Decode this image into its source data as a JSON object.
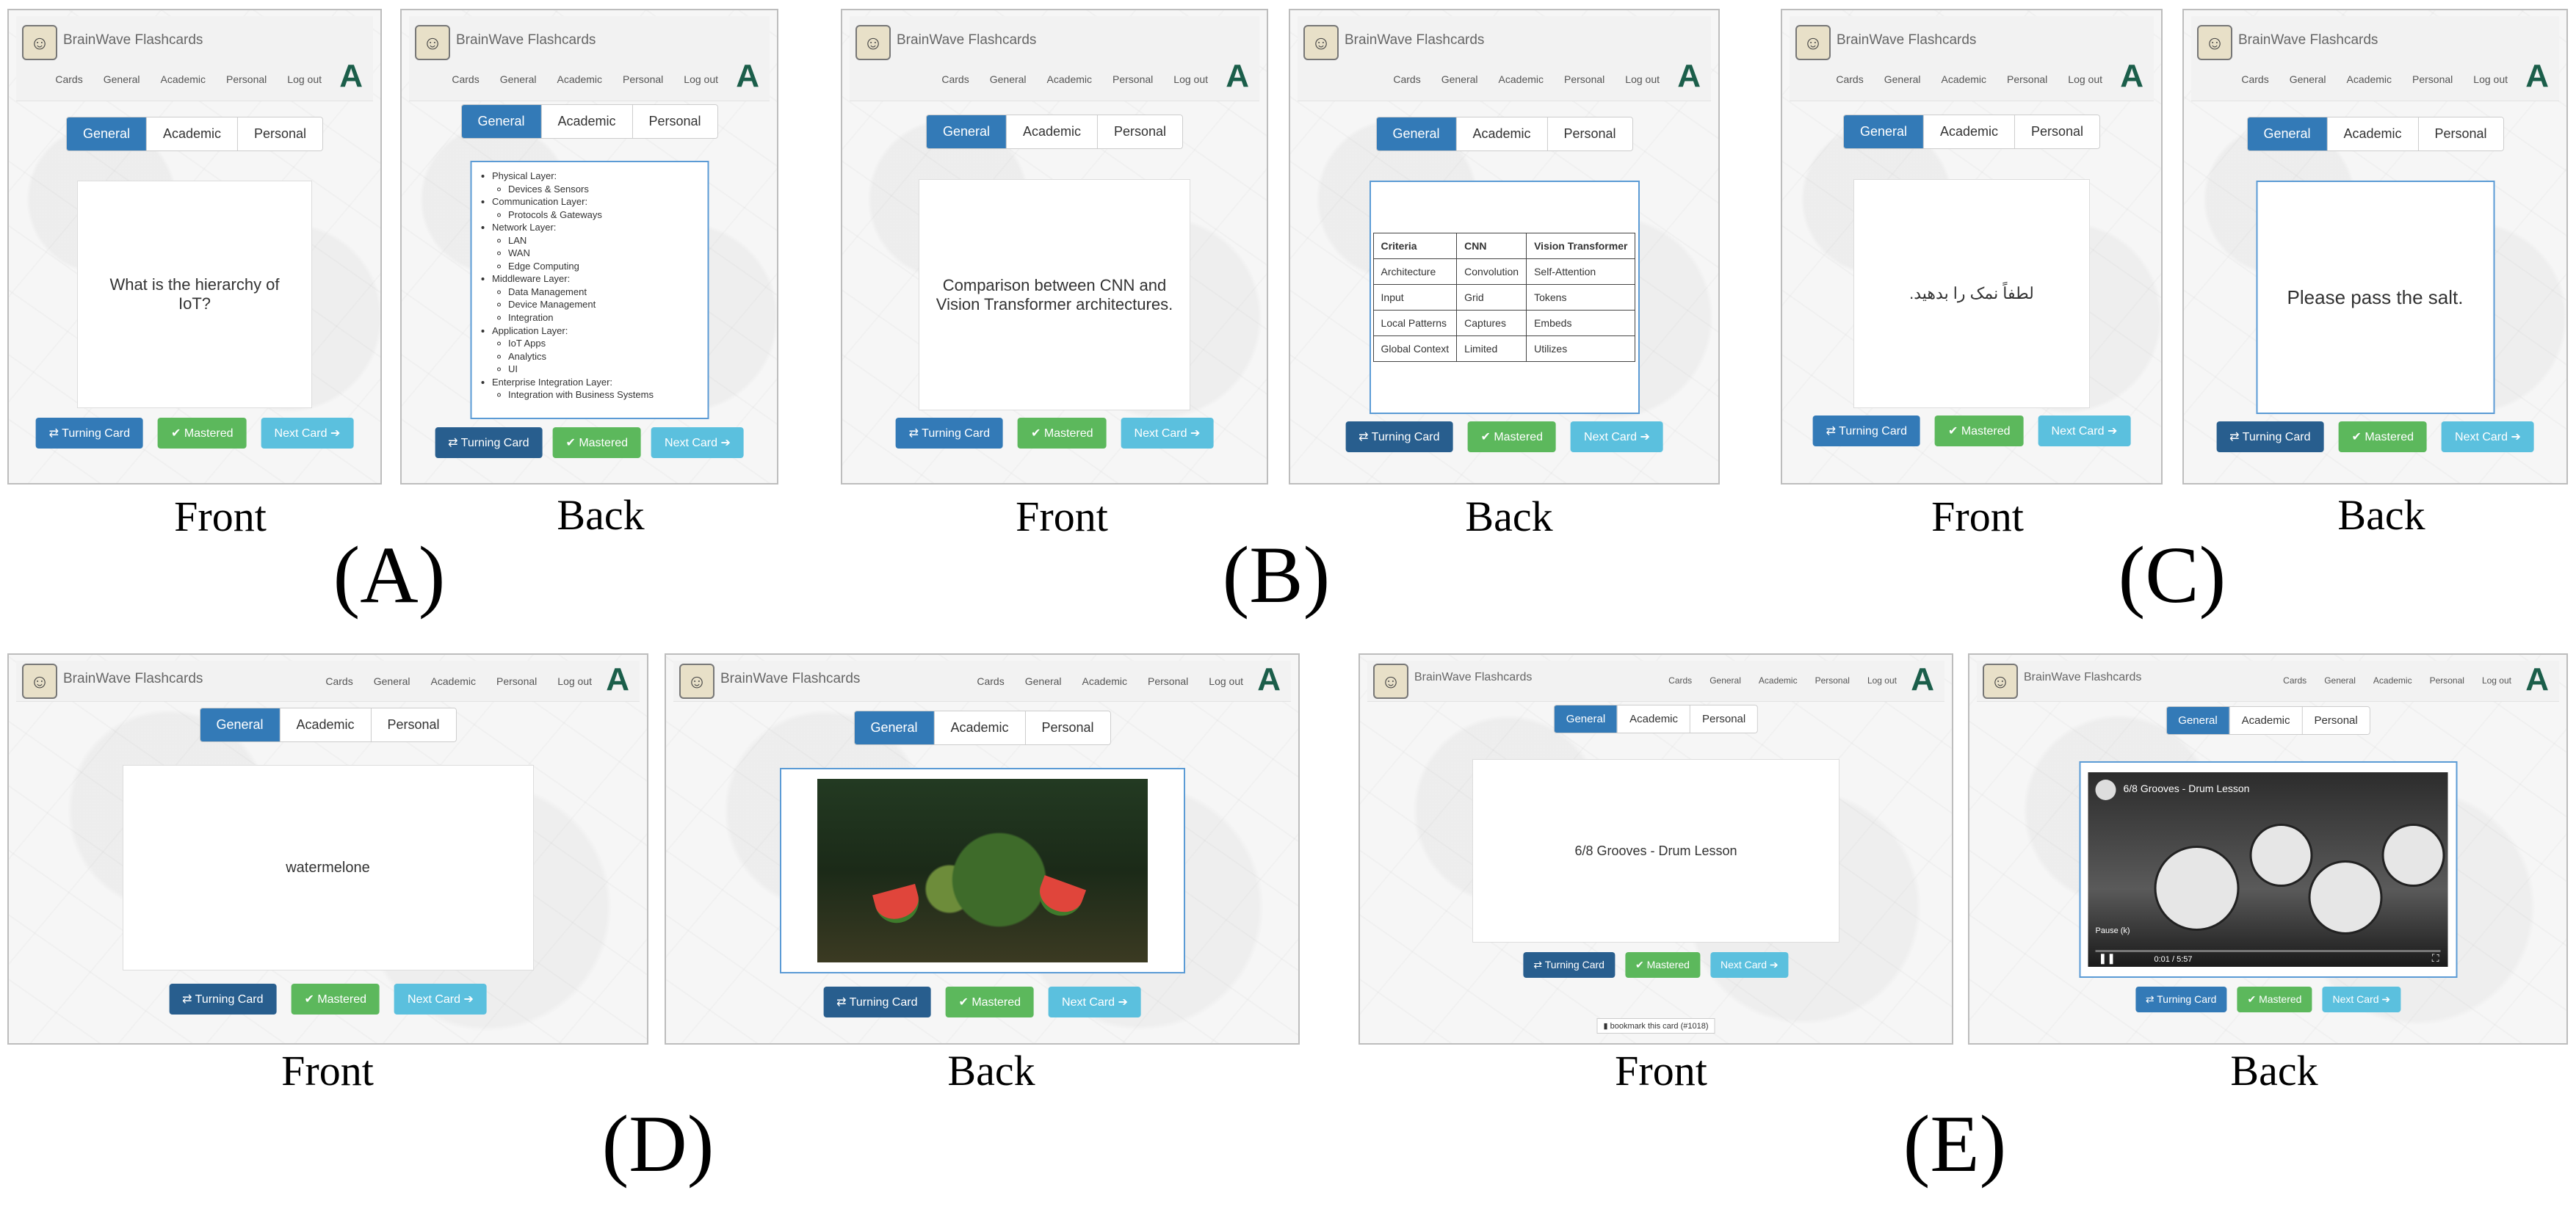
{
  "app": {
    "brand": "BrainWave Flashcards",
    "nav": [
      "Cards",
      "General",
      "Academic",
      "Personal",
      "Log out"
    ],
    "logo_letter": "A"
  },
  "tabs": [
    "General",
    "Academic",
    "Personal"
  ],
  "buttons": {
    "turn": "⇄ Turning Card",
    "mastered": "✔ Mastered",
    "next": "Next Card ➔"
  },
  "captions": {
    "front": "Front",
    "back": "Back"
  },
  "groups": [
    "(A)",
    "(B)",
    "(C)",
    "(D)",
    "(E)"
  ],
  "panels": {
    "a_front": "What is the hierarchy of IoT?",
    "a_back": [
      {
        "layer": "Physical Layer:",
        "items": [
          "Devices & Sensors"
        ]
      },
      {
        "layer": "Communication Layer:",
        "items": [
          "Protocols & Gateways"
        ]
      },
      {
        "layer": "Network Layer:",
        "items": [
          "LAN",
          "WAN",
          "Edge Computing"
        ]
      },
      {
        "layer": "Middleware Layer:",
        "items": [
          "Data Management",
          "Device Management",
          "Integration"
        ]
      },
      {
        "layer": "Application Layer:",
        "items": [
          "IoT Apps",
          "Analytics",
          "UI"
        ]
      },
      {
        "layer": "Enterprise Integration Layer:",
        "items": [
          "Integration with Business Systems"
        ]
      }
    ],
    "b_front": "Comparison between CNN and Vision Transformer architectures.",
    "b_back": {
      "header": [
        "Criteria",
        "CNN",
        "Vision Transformer"
      ],
      "rows": [
        [
          "Architecture",
          "Convolution",
          "Self-Attention"
        ],
        [
          "Input",
          "Grid",
          "Tokens"
        ],
        [
          "Local Patterns",
          "Captures",
          "Embeds"
        ],
        [
          "Global Context",
          "Limited",
          "Utilizes"
        ]
      ]
    },
    "c_front": "لطفاً نمک را بدهید.",
    "c_back": "Please pass the salt.",
    "d_front": "watermelone",
    "e_front": "6/8 Grooves - Drum Lesson",
    "e_bookmark": "bookmark this card (#1018)",
    "e_video_title": "6/8 Grooves - Drum Lesson",
    "e_video_time": "0:01 / 5:57",
    "e_video_pause": "Pause (k)"
  }
}
